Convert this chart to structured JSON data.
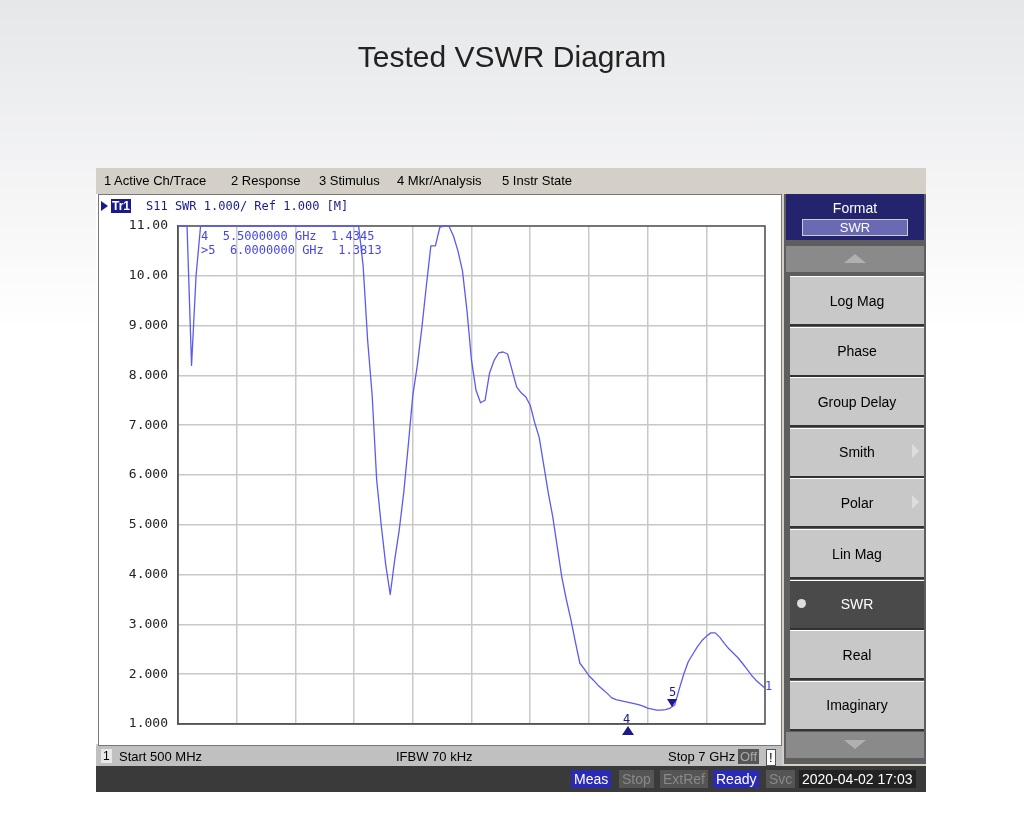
{
  "chart_data": {
    "type": "line",
    "title": "Tested VSWR Diagram",
    "categories": [
      null,
      null,
      null,
      null,
      null,
      null,
      null,
      null,
      null,
      null,
      null,
      null,
      null,
      null,
      null,
      null,
      null,
      null,
      null,
      null,
      null,
      null,
      null,
      null,
      null,
      null,
      null,
      null,
      null,
      null,
      null,
      null,
      null,
      null,
      null,
      null,
      null,
      null,
      null,
      null,
      null,
      null,
      null,
      null,
      null,
      null,
      null,
      null,
      null,
      null,
      null,
      null,
      null,
      null,
      null,
      null,
      null,
      null,
      null,
      null,
      null,
      null,
      null,
      null,
      null,
      null,
      null,
      null,
      null,
      null,
      null,
      null,
      null,
      null,
      null,
      null,
      null,
      null,
      null,
      null,
      null,
      null,
      null,
      null,
      null,
      null,
      null,
      null,
      null,
      null,
      null,
      null,
      null,
      null,
      null,
      null,
      null,
      null,
      null,
      null,
      null,
      null,
      null,
      null,
      null,
      null,
      null,
      null,
      null,
      null,
      null,
      null,
      null,
      null,
      null,
      null,
      null,
      null,
      null,
      null,
      null,
      null,
      null,
      null,
      null,
      null,
      null,
      null,
      null,
      null,
      null
    ],
    "ylim": [
      1,
      11
    ],
    "yticks": [
      {
        "value": 1,
        "label": "1.000"
      },
      {
        "value": 2,
        "label": "2.000"
      },
      {
        "value": 3,
        "label": "3.000"
      },
      {
        "value": 4,
        "label": "4.000"
      },
      {
        "value": 5,
        "label": "5.000"
      },
      {
        "value": 6,
        "label": "6.000"
      },
      {
        "value": 7,
        "label": "7.000"
      },
      {
        "value": 8,
        "label": "8.000"
      },
      {
        "value": 9,
        "label": "9.000"
      },
      {
        "value": 10,
        "label": "10.00"
      },
      {
        "value": 11,
        "label": "11.00"
      }
    ],
    "tick_labels": "y",
    "grid": true,
    "legend": false,
    "marker": "none",
    "line_style": "solid",
    "series": [
      {
        "color": "#5b5bef",
        "values": [
          11,
          11,
          11,
          8.2,
          10.0,
          11,
          11,
          11,
          11,
          11,
          11,
          11,
          11,
          11,
          11,
          11,
          11,
          11,
          11,
          11,
          11,
          11,
          11,
          11,
          11,
          11,
          11,
          11,
          11,
          11,
          11,
          11,
          11,
          11,
          11,
          11,
          11,
          11,
          11,
          11,
          11,
          10.2,
          8.7,
          7.6,
          5.9,
          5.0,
          4.2,
          3.6,
          4.3,
          4.9,
          5.65,
          6.6,
          7.6,
          8.2,
          8.95,
          9.8,
          10.6,
          10.6,
          10.98,
          11.0,
          11.0,
          10.8,
          10.5,
          10.1,
          9.3,
          8.3,
          7.7,
          7.45,
          7.5,
          8.05,
          8.3,
          8.45,
          8.47,
          8.43,
          8.1,
          7.77,
          7.65,
          7.57,
          7.4,
          7.05,
          6.75,
          6.2,
          5.64,
          5.16,
          4.55,
          3.95,
          3.5,
          3.1,
          2.65,
          2.22,
          2.1,
          1.97,
          1.88,
          1.78,
          1.7,
          1.62,
          1.53,
          1.49,
          1.47,
          1.45,
          1.43,
          1.41,
          1.39,
          1.36,
          1.32,
          1.3,
          1.28,
          1.28,
          1.29,
          1.32,
          1.38,
          1.7,
          2.0,
          2.25,
          2.4,
          2.55,
          2.67,
          2.76,
          2.83,
          2.83,
          2.74,
          2.62,
          2.51,
          2.42,
          2.33,
          2.22,
          2.1,
          1.98,
          1.88,
          1.8,
          1.72
        ]
      }
    ],
    "annotations": [
      "1 Active Ch/Trace",
      "2 Response",
      "3 Stimulus",
      "4 Mkr/Analysis",
      "5 Instr State",
      "Tr1",
      "S11 SWR 1.000/ Ref 1.000 [M]",
      "4  5.5000000 GHz  1.4345",
      ">5  6.0000000 GHz  1.3813",
      "1",
      "Start 500 MHz",
      "IFBW 70 kHz",
      "Stop 7 GHz",
      "Off",
      "!",
      "Meas",
      "Stop",
      "ExtRef",
      "Ready",
      "Svc",
      "2020-04-02 17:03",
      "Format",
      "SWR",
      "4",
      "5",
      "1",
      "Log Mag",
      "Phase",
      "Group Delay",
      "Smith",
      "Polar",
      "Lin Mag",
      "SWR",
      "Real",
      "Imaginary"
    ]
  }
}
